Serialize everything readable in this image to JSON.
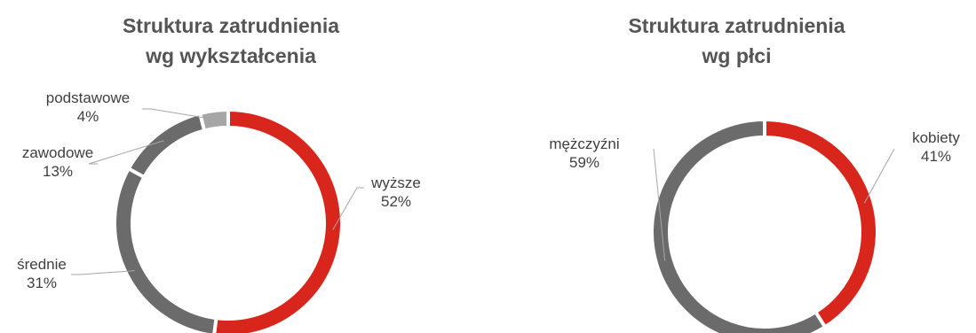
{
  "chart_data": [
    {
      "type": "pie",
      "title_line1": "Struktura zatrudnienia",
      "title_line2": "wg wykształcenia",
      "colors": {
        "wyższe": "#d9261c",
        "średnie": "#6b6b6b",
        "zawodowe": "#6b6b6b",
        "podstawowe": "#a6a6a6"
      },
      "slices": [
        {
          "name": "wyższe",
          "value": 52,
          "label": "52%"
        },
        {
          "name": "średnie",
          "value": 31,
          "label": "31%"
        },
        {
          "name": "zawodowe",
          "value": 13,
          "label": "13%"
        },
        {
          "name": "podstawowe",
          "value": 4,
          "label": "4%"
        }
      ]
    },
    {
      "type": "pie",
      "title_line1": "Struktura zatrudnienia",
      "title_line2": "wg płci",
      "colors": {
        "kobiety": "#d9261c",
        "mężczyźni": "#6b6b6b"
      },
      "slices": [
        {
          "name": "kobiety",
          "value": 41,
          "label": "41%"
        },
        {
          "name": "mężczyźni",
          "value": 59,
          "label": "59%"
        }
      ]
    }
  ]
}
